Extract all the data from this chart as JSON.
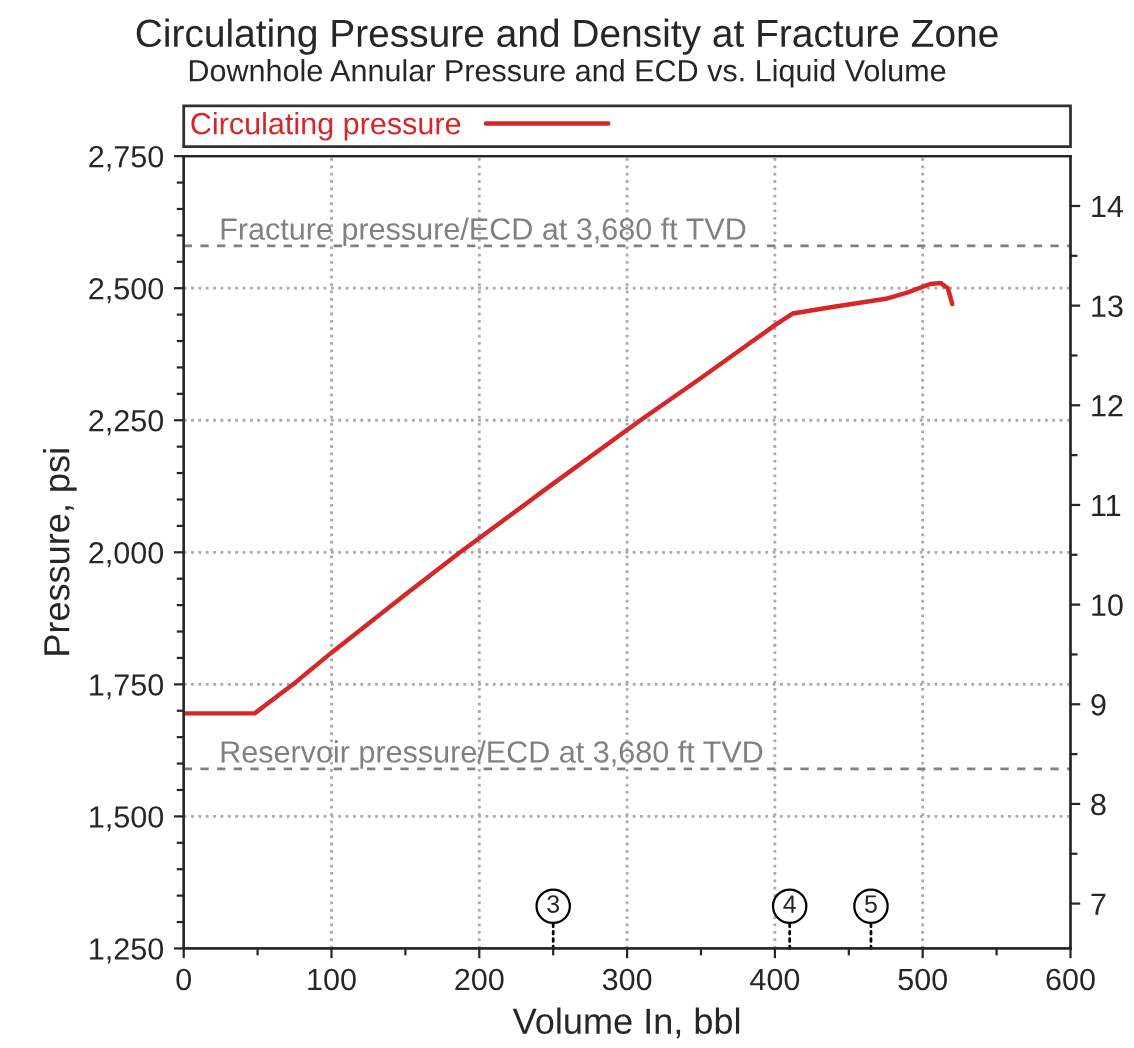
{
  "chart_data": {
    "type": "line",
    "title": "Circulating Pressure and Density at Fracture Zone",
    "subtitle": "Downhole Annular Pressure and ECD vs. Liquid Volume",
    "xlabel": "Volume In, bbl",
    "ylabel": "Pressure, psi",
    "x": [
      0,
      48,
      55,
      74,
      100,
      150,
      187,
      250,
      309,
      350,
      380,
      400,
      412,
      440,
      475,
      490,
      505,
      512,
      517,
      520
    ],
    "series": [
      {
        "name": "Circulating pressure",
        "color": "#d62728",
        "values": [
          1695,
          1695,
          1710,
          1750,
          1810,
          1920,
          2000,
          2130,
          2250,
          2330,
          2390,
          2430,
          2452,
          2465,
          2480,
          2492,
          2508,
          2510,
          2500,
          2470
        ]
      }
    ],
    "xlim": [
      0,
      600
    ],
    "xticks": [
      0,
      {
        "value": 50,
        "label": null
      },
      100,
      {
        "value": 150,
        "label": null
      },
      200,
      {
        "value": 250,
        "label": null
      },
      300,
      {
        "value": 350,
        "label": null
      },
      400,
      {
        "value": 450,
        "label": null
      },
      500,
      {
        "value": 550,
        "label": null
      },
      600
    ],
    "ylim": [
      1250,
      2750
    ],
    "yticks": [
      {
        "value": 1250,
        "label": "1,250"
      },
      {
        "value": 1300,
        "label": null
      },
      {
        "value": 1350,
        "label": null
      },
      {
        "value": 1400,
        "label": null
      },
      {
        "value": 1450,
        "label": null
      },
      {
        "value": 1500,
        "label": "1,500"
      },
      {
        "value": 1550,
        "label": null
      },
      {
        "value": 1600,
        "label": null
      },
      {
        "value": 1650,
        "label": null
      },
      {
        "value": 1700,
        "label": null
      },
      {
        "value": 1750,
        "label": "1,750"
      },
      {
        "value": 1800,
        "label": null
      },
      {
        "value": 1850,
        "label": null
      },
      {
        "value": 1900,
        "label": null
      },
      {
        "value": 1950,
        "label": null
      },
      {
        "value": 2000,
        "label": "2,000"
      },
      {
        "value": 2050,
        "label": null
      },
      {
        "value": 2100,
        "label": null
      },
      {
        "value": 2150,
        "label": null
      },
      {
        "value": 2200,
        "label": null
      },
      {
        "value": 2250,
        "label": "2,250"
      },
      {
        "value": 2300,
        "label": null
      },
      {
        "value": 2350,
        "label": null
      },
      {
        "value": 2400,
        "label": null
      },
      {
        "value": 2450,
        "label": null
      },
      {
        "value": 2500,
        "label": "2,500"
      },
      {
        "value": 2550,
        "label": null
      },
      {
        "value": 2600,
        "label": null
      },
      {
        "value": 2650,
        "label": null
      },
      {
        "value": 2700,
        "label": null
      },
      {
        "value": 2750,
        "label": "2,750"
      }
    ],
    "y2lim": [
      6.55,
      14.5
    ],
    "y2ticks": [
      7,
      {
        "value": 7.5,
        "label": null
      },
      8,
      {
        "value": 8.5,
        "label": null
      },
      9,
      {
        "value": 9.5,
        "label": null
      },
      10,
      {
        "value": 10.5,
        "label": null
      },
      11,
      {
        "value": 11.5,
        "label": null
      },
      12,
      {
        "value": 12.5,
        "label": null
      },
      13,
      {
        "value": 13.5,
        "label": null
      },
      14
    ],
    "grid": true,
    "legend": "top",
    "marker": "none",
    "line_style": "solid",
    "ref_lines": [
      {
        "axis": "y",
        "value": 2580,
        "label": "Fracture pressure/ECD at 3,680 ft TVD",
        "color": "#808080",
        "line_style": "dashed"
      },
      {
        "axis": "y",
        "value": 1590,
        "label": "Reservoir pressure/ECD at 3,680 ft TVD",
        "color": "#808080",
        "line_style": "dashed"
      }
    ],
    "annotations": [
      {
        "text": "3",
        "x": 250,
        "y": 1330
      },
      {
        "text": "4",
        "x": 410,
        "y": 1330
      },
      {
        "text": "5",
        "x": 465,
        "y": 1330
      }
    ]
  }
}
